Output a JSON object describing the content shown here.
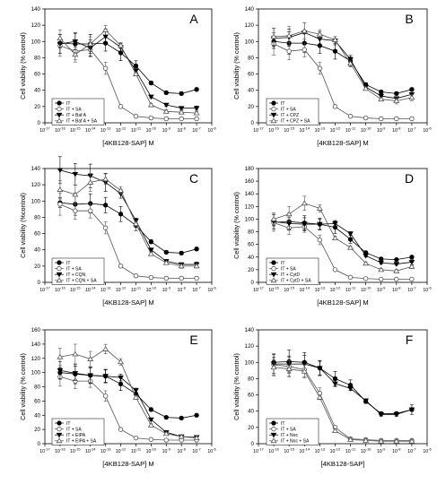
{
  "chart_data": [
    {
      "type": "line",
      "panel_letter": "A",
      "ylabel": "Cell viability (% control)",
      "xlabel": "[4KB128-SAP] M",
      "ylim": [
        0,
        140
      ],
      "xlim_log10": [
        -17,
        -6
      ],
      "x_log10": [
        -16,
        -15,
        -14,
        -13,
        -12,
        -11,
        -10,
        -9,
        -8,
        -7
      ],
      "series": [
        {
          "name": "IT",
          "marker": "filled-circle",
          "values": [
            98,
            97,
            97,
            98,
            86,
            70,
            49,
            37,
            36,
            41
          ]
        },
        {
          "name": "IT + SA",
          "marker": "open-circle",
          "values": [
            95,
            88,
            90,
            67,
            20,
            8,
            6,
            5,
            5,
            5
          ]
        },
        {
          "name": "IT + Baf A",
          "marker": "filled-triangle",
          "values": [
            97,
            100,
            92,
            106,
            93,
            64,
            32,
            22,
            18,
            18
          ]
        },
        {
          "name": "IT + Baf A + SA",
          "marker": "open-triangle",
          "values": [
            104,
            84,
            97,
            114,
            95,
            60,
            22,
            14,
            13,
            12
          ]
        }
      ]
    },
    {
      "type": "line",
      "panel_letter": "B",
      "ylabel": "Cell viability (% control)",
      "xlabel": "[4KB128-SAP] M",
      "ylim": [
        0,
        140
      ],
      "xlim_log10": [
        -17,
        -6
      ],
      "x_log10": [
        -16,
        -15,
        -14,
        -13,
        -12,
        -11,
        -10,
        -9,
        -8,
        -7
      ],
      "series": [
        {
          "name": "IT",
          "marker": "filled-circle",
          "values": [
            100,
            98,
            98,
            95,
            88,
            76,
            47,
            38,
            36,
            41
          ]
        },
        {
          "name": "IT + SA",
          "marker": "open-circle",
          "values": [
            97,
            88,
            90,
            67,
            20,
            8,
            6,
            5,
            5,
            5
          ]
        },
        {
          "name": "IT + CPZ",
          "marker": "filled-triangle",
          "values": [
            104,
            105,
            111,
            103,
            101,
            78,
            44,
            33,
            30,
            35
          ]
        },
        {
          "name": "IT + CPZ + SA",
          "marker": "open-triangle",
          "values": [
            106,
            107,
            113,
            109,
            102,
            73,
            42,
            29,
            27,
            31
          ]
        }
      ]
    },
    {
      "type": "line",
      "panel_letter": "C",
      "ylabel": "Cell viability (%control)",
      "xlabel": "[4KB128-SAP] M",
      "ylim": [
        0,
        140
      ],
      "xlim_log10": [
        -17,
        -6
      ],
      "x_log10": [
        -16,
        -15,
        -14,
        -13,
        -12,
        -11,
        -10,
        -9,
        -8,
        -7
      ],
      "series": [
        {
          "name": "IT",
          "marker": "filled-circle",
          "values": [
            98,
            96,
            97,
            95,
            84,
            70,
            50,
            37,
            36,
            41
          ]
        },
        {
          "name": "IT + SA",
          "marker": "open-circle",
          "values": [
            96,
            88,
            88,
            67,
            20,
            8,
            6,
            5,
            5,
            5
          ]
        },
        {
          "name": "IT + CQN",
          "marker": "filled-triangle",
          "values": [
            138,
            133,
            131,
            123,
            109,
            76,
            40,
            26,
            22,
            22
          ]
        },
        {
          "name": "IT + CQN + SA",
          "marker": "open-triangle",
          "values": [
            114,
            108,
            123,
            127,
            113,
            72,
            35,
            24,
            20,
            20
          ]
        }
      ]
    },
    {
      "type": "line",
      "panel_letter": "D",
      "ylabel": "Cell viability (% control)",
      "xlabel": "[4KB128-SAP] M",
      "ylim": [
        0,
        180
      ],
      "xlim_log10": [
        -17,
        -6
      ],
      "x_log10": [
        -16,
        -15,
        -14,
        -13,
        -12,
        -11,
        -10,
        -9,
        -8,
        -7
      ],
      "series": [
        {
          "name": "IT",
          "marker": "filled-circle",
          "values": [
            95,
            96,
            94,
            92,
            87,
            68,
            47,
            37,
            36,
            40
          ]
        },
        {
          "name": "IT + SA",
          "marker": "open-circle",
          "values": [
            94,
            86,
            88,
            67,
            20,
            8,
            6,
            5,
            5,
            5
          ]
        },
        {
          "name": "IT + CytD",
          "marker": "filled-triangle",
          "values": [
            96,
            93,
            92,
            92,
            93,
            77,
            42,
            31,
            29,
            32
          ]
        },
        {
          "name": "IT + CytD + SA",
          "marker": "open-triangle",
          "values": [
            100,
            108,
            125,
            117,
            70,
            55,
            30,
            20,
            18,
            25
          ]
        }
      ]
    },
    {
      "type": "line",
      "panel_letter": "E",
      "ylabel": "Cell viability (% control)",
      "xlabel": "[4KB128-SAP] M",
      "ylim": [
        0,
        160
      ],
      "xlim_log10": [
        -17,
        -6
      ],
      "x_log10": [
        -16,
        -15,
        -14,
        -13,
        -12,
        -11,
        -10,
        -9,
        -8,
        -7
      ],
      "series": [
        {
          "name": "IT",
          "marker": "filled-circle",
          "values": [
            100,
            98,
            96,
            95,
            84,
            70,
            48,
            37,
            36,
            40
          ]
        },
        {
          "name": "IT + SA",
          "marker": "open-circle",
          "values": [
            94,
            88,
            88,
            67,
            20,
            8,
            6,
            5,
            5,
            5
          ]
        },
        {
          "name": "IT + EIPA",
          "marker": "filled-triangle",
          "values": [
            103,
            99,
            96,
            95,
            93,
            75,
            34,
            16,
            10,
            9
          ]
        },
        {
          "name": "IT + EIPA + SA",
          "marker": "open-triangle",
          "values": [
            122,
            126,
            119,
            133,
            115,
            65,
            26,
            14,
            10,
            8
          ]
        }
      ]
    },
    {
      "type": "line",
      "panel_letter": "F",
      "ylabel": "Cell viability (% control)",
      "xlabel": "[4KB128-SAP]",
      "ylim": [
        0,
        140
      ],
      "xlim_log10": [
        -17,
        -6
      ],
      "x_log10": [
        -16,
        -15,
        -14,
        -13,
        -12,
        -11,
        -10,
        -9,
        -8,
        -7
      ],
      "series": [
        {
          "name": "IT",
          "marker": "filled-circle",
          "values": [
            100,
            101,
            100,
            93,
            80,
            72,
            52,
            37,
            37,
            42
          ]
        },
        {
          "name": "IT + SA",
          "marker": "open-circle",
          "values": [
            97,
            95,
            91,
            62,
            20,
            6,
            5,
            4,
            4,
            4
          ]
        },
        {
          "name": "IT + Noc",
          "marker": "filled-triangle",
          "values": [
            98,
            98,
            98,
            93,
            74,
            68,
            53,
            36,
            36,
            42
          ]
        },
        {
          "name": "IT + Noc + SA",
          "marker": "open-triangle",
          "values": [
            94,
            92,
            89,
            57,
            16,
            5,
            4,
            3,
            3,
            3
          ]
        }
      ]
    }
  ]
}
